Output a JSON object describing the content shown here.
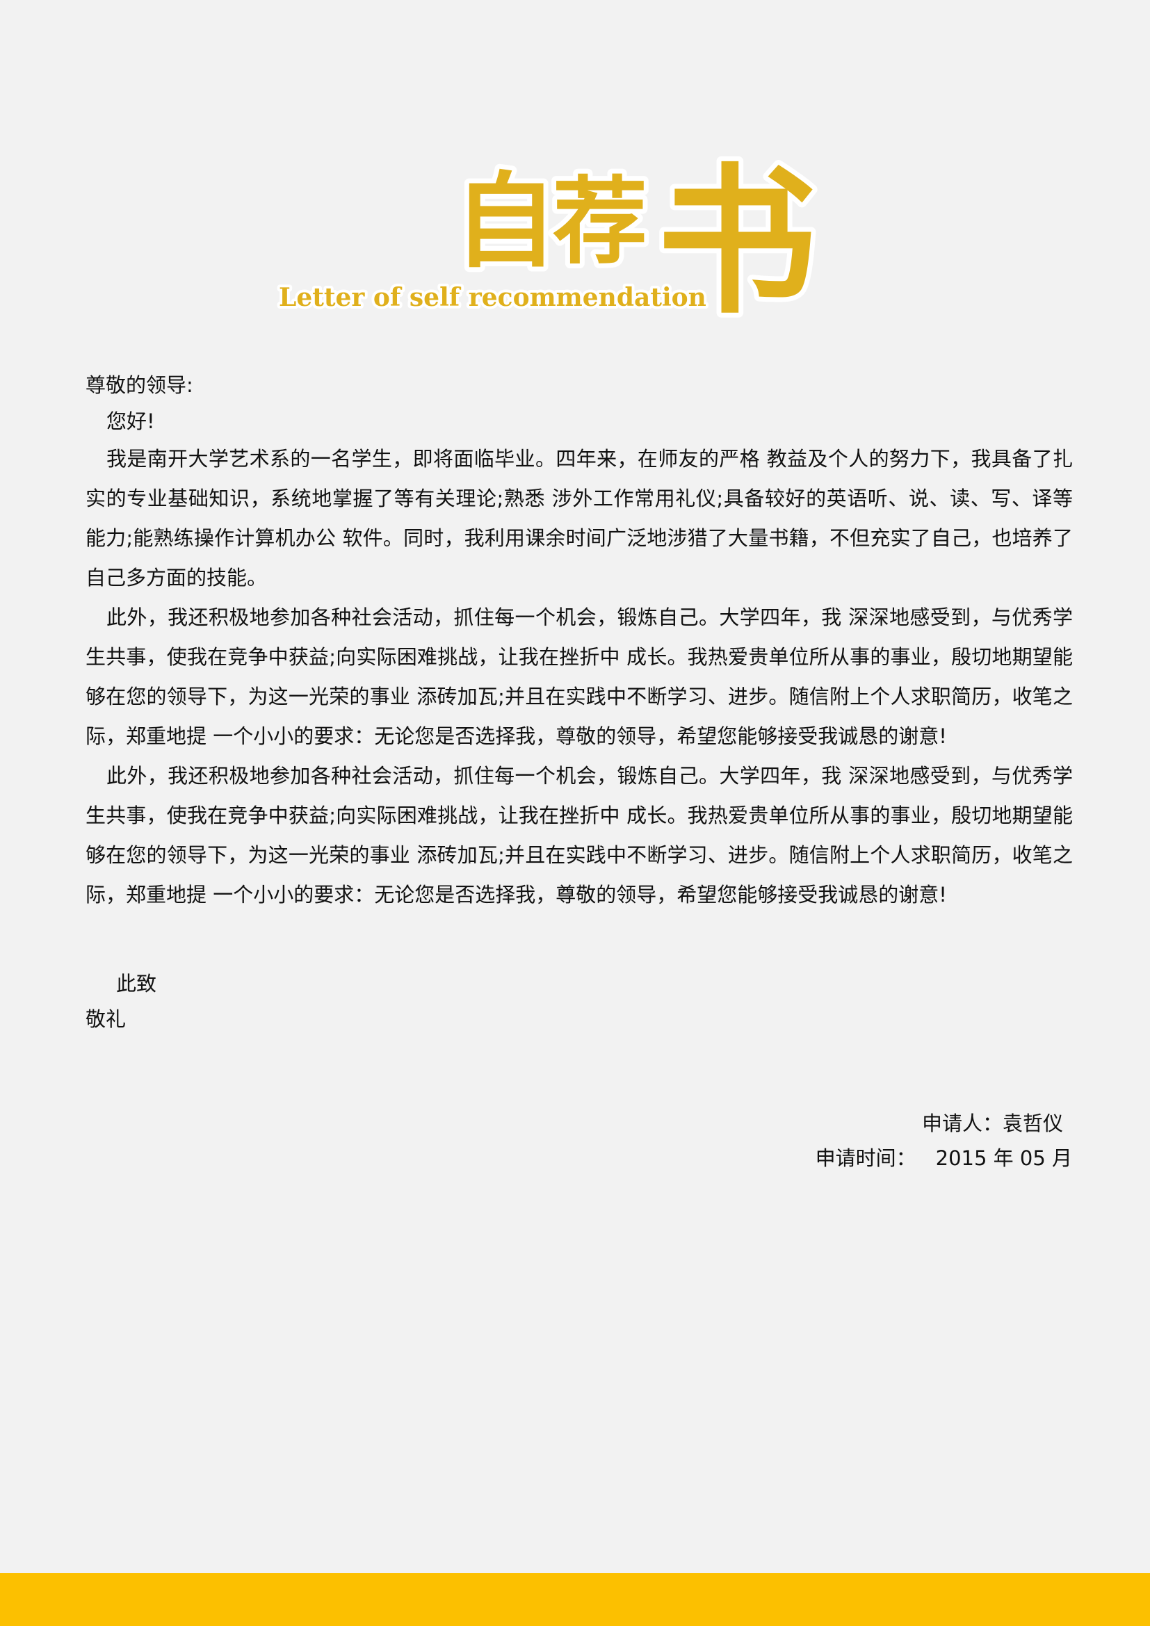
{
  "logo": {
    "char1": "自",
    "char2": "荐",
    "char3": "书",
    "subtitle": "Letter of self recommendation",
    "color": "#e0b01c"
  },
  "letter": {
    "salutation": "尊敬的领导:",
    "greeting": "您好!",
    "paragraphs": [
      "我是南开大学艺术系的一名学生，即将面临毕业。四年来，在师友的严格 教益及个人的努力下，我具备了扎实的专业基础知识，系统地掌握了等有关理论;熟悉 涉外工作常用礼仪;具备较好的英语听、说、读、写、译等能力;能熟练操作计算机办公 软件。同时，我利用课余时间广泛地涉猎了大量书籍，不但充实了自己，也培养了自己多方面的技能。",
      "此外，我还积极地参加各种社会活动，抓住每一个机会，锻炼自己。大学四年，我 深深地感受到，与优秀学生共事，使我在竞争中获益;向实际困难挑战，让我在挫折中 成长。我热爱贵单位所从事的事业，殷切地期望能够在您的领导下，为这一光荣的事业 添砖加瓦;并且在实践中不断学习、进步。随信附上个人求职简历，收笔之际，郑重地提 一个小小的要求：无论您是否选择我，尊敬的领导，希望您能够接受我诚恳的谢意!",
      "此外，我还积极地参加各种社会活动，抓住每一个机会，锻炼自己。大学四年，我 深深地感受到，与优秀学生共事，使我在竞争中获益;向实际困难挑战，让我在挫折中 成长。我热爱贵单位所从事的事业，殷切地期望能够在您的领导下，为这一光荣的事业 添砖加瓦;并且在实践中不断学习、进步。随信附上个人求职简历，收笔之际，郑重地提 一个小小的要求：无论您是否选择我，尊敬的领导，希望您能够接受我诚恳的谢意!"
    ],
    "closing_line1": "此致",
    "closing_line2": "敬礼"
  },
  "signature": {
    "applicant_label": "申请人：",
    "applicant_name": "袁哲仪",
    "date_label": "申请时间：",
    "date_value": "2015 年 05 月"
  },
  "footer": {
    "bar_color": "#fcc000"
  }
}
